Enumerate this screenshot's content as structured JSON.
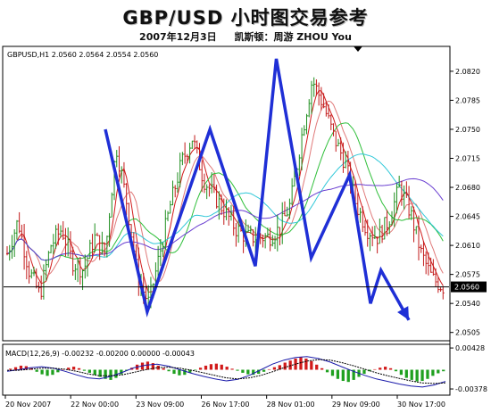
{
  "title": "GBP/USD  小时图交易参考",
  "subtitle": {
    "date": "2007年12月3日",
    "author": "凯斯顿：周游 ZHOU You"
  },
  "chart_data": [
    {
      "type": "candlestick",
      "header": "GBPUSD,H1  2.0560 2.0564 2.0554 2.0560",
      "symbol": "GBPUSD,H1",
      "ohlc_last": {
        "open": 2.056,
        "high": 2.0564,
        "low": 2.0554,
        "close": 2.056
      },
      "current_price_label": "2.0560",
      "current_price": 2.056,
      "ylim": [
        2.0495,
        2.085
      ],
      "y_ticks": [
        "2.0820",
        "2.0785",
        "2.0750",
        "2.0715",
        "2.0680",
        "2.0645",
        "2.0610",
        "2.0575",
        "2.0540",
        "2.0505"
      ],
      "x_ticks": [
        "20 Nov 2007",
        "22 Nov 00:00",
        "23 Nov 09:00",
        "26 Nov 17:00",
        "28 Nov 01:00",
        "29 Nov 09:00",
        "30 Nov 17:00"
      ],
      "grid": false,
      "close_path": [
        2.06,
        2.064,
        2.058,
        2.055,
        2.061,
        2.063,
        2.059,
        2.058,
        2.062,
        2.06,
        2.073,
        2.066,
        2.057,
        2.054,
        2.06,
        2.066,
        2.071,
        2.074,
        2.069,
        2.067,
        2.065,
        2.063,
        2.062,
        2.062,
        2.062,
        2.063,
        2.066,
        2.074,
        2.081,
        2.078,
        2.074,
        2.071,
        2.066,
        2.063,
        2.062,
        2.064,
        2.068,
        2.065,
        2.06,
        2.057,
        2.056
      ],
      "trend_overlay": {
        "color": "#1f2fd6",
        "points": [
          [
            0,
            2.075
          ],
          [
            0.12,
            2.053
          ],
          [
            0.3,
            2.075
          ],
          [
            0.43,
            2.0585
          ],
          [
            0.49,
            2.0835
          ],
          [
            0.59,
            2.0595
          ],
          [
            0.7,
            2.0695
          ],
          [
            0.76,
            2.054
          ],
          [
            0.79,
            2.058
          ],
          [
            0.87,
            2.052
          ]
        ]
      },
      "moving_averages": [
        {
          "color": "#d11a1a"
        },
        {
          "color": "#e07a7a"
        },
        {
          "color": "#2fbf3a"
        },
        {
          "color": "#30c8d8"
        },
        {
          "color": "#6a3fd1"
        }
      ]
    },
    {
      "type": "histogram",
      "header": "MACD(12,26,9) -0.00232 -0.00200 0.00000 -0.00043",
      "indicator": "MACD(12,26,9)",
      "values_shown": [
        "-0.00232",
        "-0.00200",
        "0.00000",
        "-0.00043"
      ],
      "y_ticks": [
        "0.00428",
        "-0.00378"
      ],
      "ylim": [
        -0.005,
        0.005
      ],
      "bars": [
        0.0002,
        0.0005,
        0.0008,
        0.0007,
        0.0003,
        -0.0004,
        -0.0009,
        -0.0012,
        -0.001,
        -0.0005,
        0.0001,
        0.0004,
        0.0006,
        0.0003,
        -0.0002,
        -0.0006,
        -0.001,
        -0.0014,
        -0.0018,
        -0.002,
        -0.0016,
        -0.0009,
        -0.0002,
        0.0004,
        0.001,
        0.0014,
        0.0016,
        0.0013,
        0.0008,
        0.0003,
        -0.0003,
        -0.0008,
        -0.0011,
        -0.001,
        -0.0006,
        -0.0001,
        0.0004,
        0.0008,
        0.0011,
        0.0012,
        0.001,
        0.0006,
        0.0002,
        -0.0002,
        -0.0006,
        -0.0009,
        -0.001,
        -0.0008,
        -0.0004,
        0.0001,
        0.0005,
        0.0009,
        0.0014,
        0.0018,
        0.0022,
        0.0025,
        0.0022,
        0.0017,
        0.001,
        0.0003,
        -0.0005,
        -0.0012,
        -0.0018,
        -0.0022,
        -0.0024,
        -0.002,
        -0.0014,
        -0.0008,
        -0.0003,
        0.0001,
        0.0004,
        0.0006,
        0.0003,
        -0.0003,
        -0.001,
        -0.0016,
        -0.002,
        -0.0023,
        -0.0022,
        -0.0018,
        -0.0012,
        -0.0007,
        -0.0003
      ],
      "macd_line": [
        -0.0003,
        0.0,
        0.0004,
        0.0006,
        0.0003,
        -0.0003,
        -0.001,
        -0.0016,
        -0.0018,
        -0.0013,
        -0.0005,
        0.0004,
        0.0009,
        0.0011,
        0.0007,
        0.0,
        -0.0007,
        -0.0013,
        -0.0018,
        -0.0022,
        -0.0019,
        -0.0011,
        0.0,
        0.0011,
        0.0019,
        0.0024,
        0.0026,
        0.0022,
        0.0015,
        0.0006,
        -0.0003,
        -0.0011,
        -0.0018,
        -0.0023,
        -0.0028,
        -0.0032,
        -0.0034,
        -0.003,
        -0.0023
      ],
      "signal_line": [
        -0.0001,
        -0.0001,
        0.0001,
        0.0003,
        0.0003,
        0.0001,
        -0.0003,
        -0.0008,
        -0.0012,
        -0.0012,
        -0.001,
        -0.0005,
        0.0,
        0.0004,
        0.0005,
        0.0003,
        -0.0001,
        -0.0006,
        -0.0011,
        -0.0016,
        -0.0018,
        -0.0016,
        -0.0011,
        -0.0004,
        0.0004,
        0.0011,
        0.0017,
        0.002,
        0.0019,
        0.0014,
        0.0008,
        0.0001,
        -0.0006,
        -0.0012,
        -0.0017,
        -0.0022,
        -0.0026,
        -0.0027,
        -0.0026
      ],
      "colors": {
        "positive": "#d11a1a",
        "negative": "#1fa01f",
        "macd_line": "#1a1aaa",
        "signal_line": "#000000"
      }
    }
  ]
}
